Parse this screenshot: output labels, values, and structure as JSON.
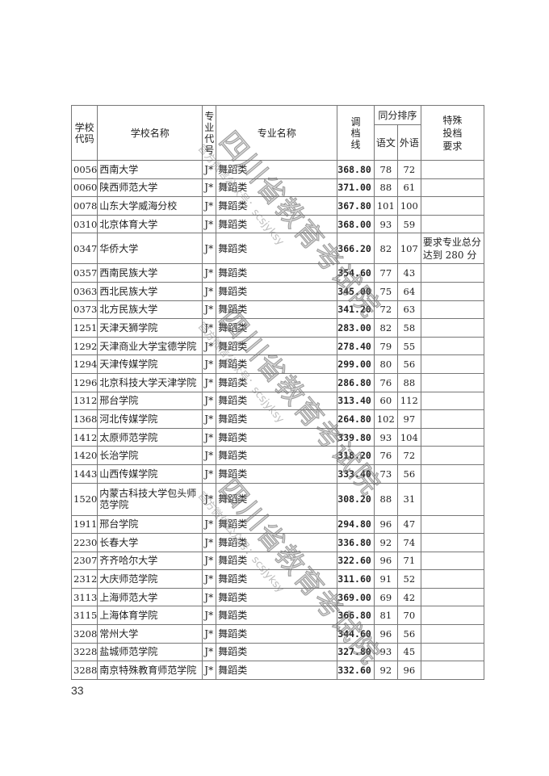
{
  "header": {
    "school_code": "学校代码",
    "school_name": "学校名称",
    "major_code": "专业代号",
    "major_name": "专业名称",
    "cutoff": "调档线",
    "tie_rank": "同分排序",
    "chinese": "语文",
    "foreign": "外语",
    "special": "特殊投档要求"
  },
  "rows": [
    {
      "code": "0056",
      "school": "西南大学",
      "mcode": "J*",
      "major": "舞蹈类",
      "score": "368.80",
      "cn": "78",
      "fl": "72",
      "note": ""
    },
    {
      "code": "0060",
      "school": "陕西师范大学",
      "mcode": "J*",
      "major": "舞蹈类",
      "score": "371.00",
      "cn": "88",
      "fl": "61",
      "note": ""
    },
    {
      "code": "0078",
      "school": "山东大学威海分校",
      "mcode": "J*",
      "major": "舞蹈类",
      "score": "367.80",
      "cn": "101",
      "fl": "100",
      "note": ""
    },
    {
      "code": "0310",
      "school": "北京体育大学",
      "mcode": "J*",
      "major": "舞蹈类",
      "score": "368.00",
      "cn": "93",
      "fl": "59",
      "note": ""
    },
    {
      "code": "0347",
      "school": "华侨大学",
      "mcode": "J*",
      "major": "舞蹈类",
      "score": "366.20",
      "cn": "82",
      "fl": "107",
      "note": "要求专业总分达到 280 分"
    },
    {
      "code": "0357",
      "school": "西南民族大学",
      "mcode": "J*",
      "major": "舞蹈类",
      "score": "354.60",
      "cn": "77",
      "fl": "43",
      "note": ""
    },
    {
      "code": "0363",
      "school": "西北民族大学",
      "mcode": "J*",
      "major": "舞蹈类",
      "score": "345.00",
      "cn": "75",
      "fl": "64",
      "note": ""
    },
    {
      "code": "0373",
      "school": "北方民族大学",
      "mcode": "J*",
      "major": "舞蹈类",
      "score": "341.20",
      "cn": "72",
      "fl": "63",
      "note": ""
    },
    {
      "code": "1251",
      "school": "天津天狮学院",
      "mcode": "J*",
      "major": "舞蹈类",
      "score": "283.00",
      "cn": "82",
      "fl": "58",
      "note": ""
    },
    {
      "code": "1292",
      "school": "天津商业大学宝德学院",
      "mcode": "J*",
      "major": "舞蹈类",
      "score": "278.40",
      "cn": "79",
      "fl": "55",
      "note": ""
    },
    {
      "code": "1294",
      "school": "天津传媒学院",
      "mcode": "J*",
      "major": "舞蹈类",
      "score": "299.00",
      "cn": "80",
      "fl": "56",
      "note": ""
    },
    {
      "code": "1296",
      "school": "北京科技大学天津学院",
      "mcode": "J*",
      "major": "舞蹈类",
      "score": "286.80",
      "cn": "76",
      "fl": "88",
      "note": ""
    },
    {
      "code": "1312",
      "school": "邢台学院",
      "mcode": "J*",
      "major": "舞蹈类",
      "score": "313.40",
      "cn": "60",
      "fl": "112",
      "note": ""
    },
    {
      "code": "1368",
      "school": "河北传媒学院",
      "mcode": "J*",
      "major": "舞蹈类",
      "score": "264.80",
      "cn": "102",
      "fl": "97",
      "note": ""
    },
    {
      "code": "1412",
      "school": "太原师范学院",
      "mcode": "J*",
      "major": "舞蹈类",
      "score": "339.80",
      "cn": "93",
      "fl": "104",
      "note": ""
    },
    {
      "code": "1420",
      "school": "长治学院",
      "mcode": "J*",
      "major": "舞蹈类",
      "score": "318.20",
      "cn": "76",
      "fl": "72",
      "note": ""
    },
    {
      "code": "1443",
      "school": "山西传媒学院",
      "mcode": "J*",
      "major": "舞蹈类",
      "score": "333.40",
      "cn": "73",
      "fl": "56",
      "note": ""
    },
    {
      "code": "1520",
      "school": "内蒙古科技大学包头师范学院",
      "mcode": "J*",
      "major": "舞蹈类",
      "score": "308.20",
      "cn": "88",
      "fl": "31",
      "note": ""
    },
    {
      "code": "1911",
      "school": "邢台学院",
      "mcode": "J*",
      "major": "舞蹈类",
      "score": "294.80",
      "cn": "96",
      "fl": "47",
      "note": ""
    },
    {
      "code": "2230",
      "school": "长春大学",
      "mcode": "J*",
      "major": "舞蹈类",
      "score": "336.80",
      "cn": "92",
      "fl": "74",
      "note": ""
    },
    {
      "code": "2307",
      "school": "齐齐哈尔大学",
      "mcode": "J*",
      "major": "舞蹈类",
      "score": "322.60",
      "cn": "96",
      "fl": "71",
      "note": ""
    },
    {
      "code": "2312",
      "school": "大庆师范学院",
      "mcode": "J*",
      "major": "舞蹈类",
      "score": "311.60",
      "cn": "91",
      "fl": "52",
      "note": ""
    },
    {
      "code": "3113",
      "school": "上海师范大学",
      "mcode": "J*",
      "major": "舞蹈类",
      "score": "369.00",
      "cn": "69",
      "fl": "42",
      "note": ""
    },
    {
      "code": "3115",
      "school": "上海体育学院",
      "mcode": "J*",
      "major": "舞蹈类",
      "score": "366.80",
      "cn": "81",
      "fl": "70",
      "note": ""
    },
    {
      "code": "3208",
      "school": "常州大学",
      "mcode": "J*",
      "major": "舞蹈类",
      "score": "344.60",
      "cn": "96",
      "fl": "56",
      "note": ""
    },
    {
      "code": "3228",
      "school": "盐城师范学院",
      "mcode": "J*",
      "major": "舞蹈类",
      "score": "327.80",
      "cn": "93",
      "fl": "45",
      "note": ""
    },
    {
      "code": "3288",
      "school": "南京特殊教育师范学院",
      "mcode": "J*",
      "major": "舞蹈类",
      "score": "332.60",
      "cn": "92",
      "fl": "96",
      "note": ""
    }
  ],
  "watermark": {
    "title": "四川省教育考试院",
    "subtitle": "官方微信公众号：scsjyksy"
  },
  "page_number": "33"
}
